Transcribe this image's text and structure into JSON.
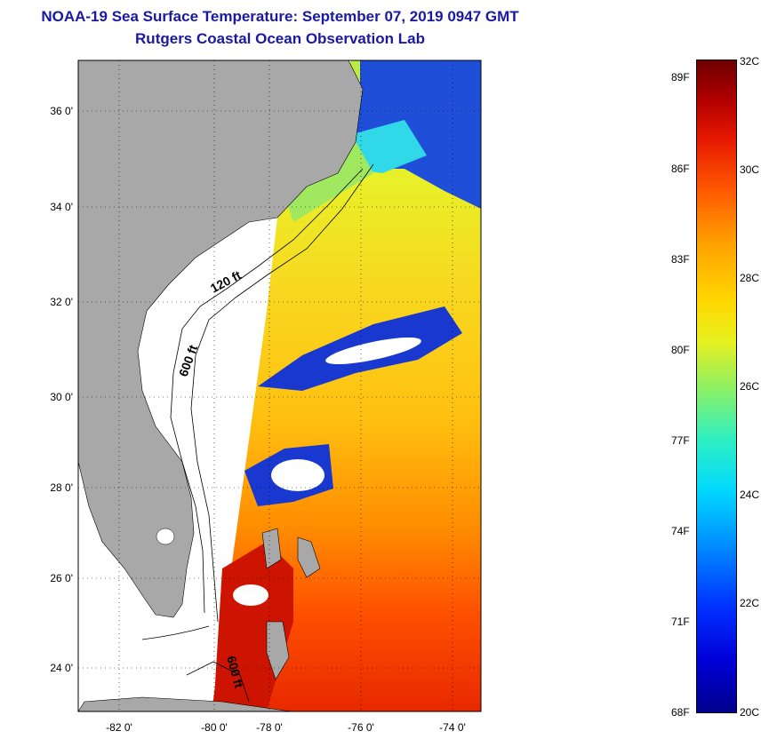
{
  "header": {
    "title": "NOAA-19 Sea Surface Temperature:  September 07, 2019 0947 GMT",
    "subtitle": "Rutgers Coastal Ocean Observation Lab"
  },
  "map": {
    "longitude_labels": [
      "-82 0'",
      "-80 0'",
      "-78 0'",
      "-76 0'",
      "-74 0'"
    ],
    "latitude_labels": [
      "36 0'",
      "34 0'",
      "32 0'",
      "30 0'",
      "28 0'",
      "26 0'",
      "24 0'"
    ],
    "contour_labels": [
      "120 ft",
      "600 ft",
      "600 ft"
    ],
    "colors": {
      "land": "#a8a8a8",
      "cloud": "#ffffff",
      "frame": "#000000"
    }
  },
  "colorbar": {
    "fahrenheit_labels": [
      "89F",
      "86F",
      "83F",
      "80F",
      "77F",
      "74F",
      "71F",
      "68F"
    ],
    "celsius_labels": [
      "32C",
      "30C",
      "28C",
      "26C",
      "24C",
      "22C",
      "20C"
    ],
    "range_celsius": [
      20,
      32
    ],
    "range_fahrenheit": [
      68,
      89
    ]
  }
}
